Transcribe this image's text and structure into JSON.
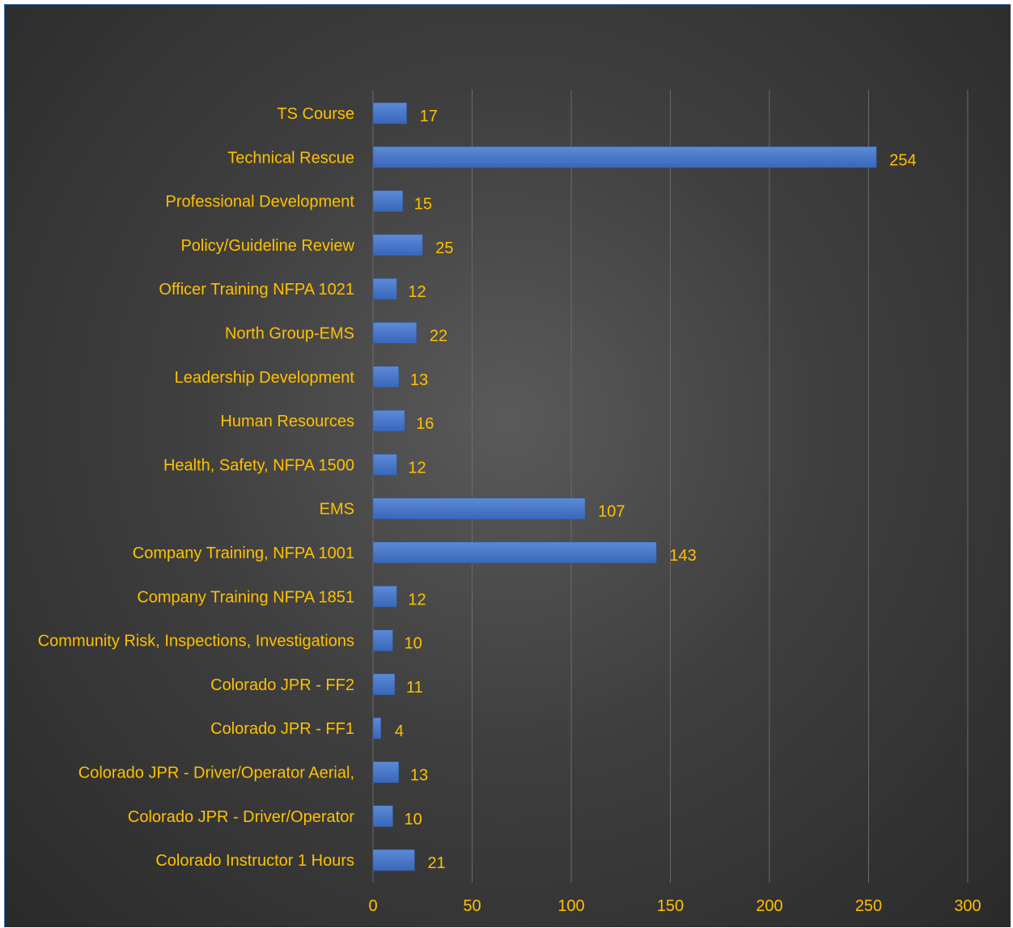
{
  "chart_data": {
    "type": "bar",
    "orientation": "horizontal",
    "categories": [
      "TS Course",
      "Technical Rescue",
      "Professional Development",
      "Policy/Guideline Review",
      "Officer Training NFPA 1021",
      "North Group-EMS",
      "Leadership Development",
      "Human Resources",
      "Health, Safety, NFPA 1500",
      "EMS",
      "Company Training, NFPA 1001",
      "Company Training NFPA 1851",
      "Community Risk, Inspections, Investigations",
      "Colorado JPR - FF2",
      "Colorado JPR - FF1",
      "Colorado JPR - Driver/Operator Aerial,",
      "Colorado JPR - Driver/Operator",
      "Colorado Instructor 1 Hours"
    ],
    "values": [
      17,
      254,
      15,
      25,
      12,
      22,
      13,
      16,
      12,
      107,
      143,
      12,
      10,
      11,
      4,
      13,
      10,
      21
    ],
    "xlim": [
      0,
      300
    ],
    "x_ticks": [
      0,
      50,
      100,
      150,
      200,
      250,
      300
    ],
    "grid": true,
    "data_labels": true,
    "legend": "none",
    "colors": {
      "bar": "#4472c4",
      "text": "#ffc000",
      "grid": "#6a6a6a",
      "background": "#3a3a3a"
    }
  }
}
